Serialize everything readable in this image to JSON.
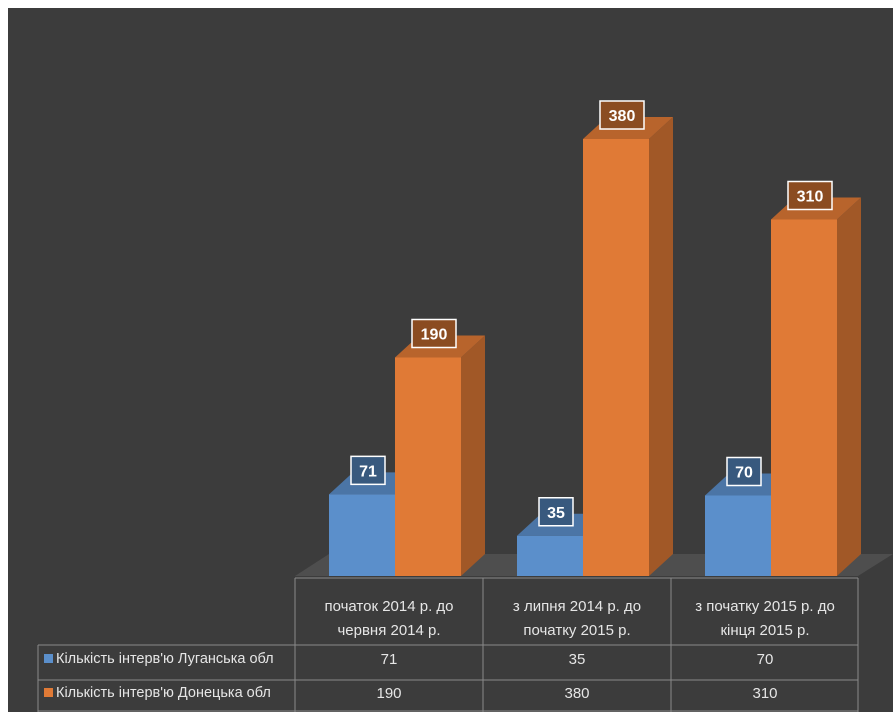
{
  "colors": {
    "background": "#3c3c3c",
    "series_1": "#5b8fcb",
    "series_2": "#e07a36",
    "table_lines": "#8a8a8a",
    "text": "#e6e6e6"
  },
  "chart_data": {
    "type": "bar",
    "title": "",
    "categories": [
      [
        "початок 2014 р. до",
        "червня 2014 р."
      ],
      [
        "з липня 2014 р. до",
        "початку 2015 р."
      ],
      [
        "з початку 2015 р. до",
        "кінця 2015 р."
      ]
    ],
    "series": [
      {
        "name": "Кількість інтерв'ю Луганська обл",
        "values": [
          71,
          35,
          70
        ]
      },
      {
        "name": "Кількість інтерв'ю Донецька обл",
        "values": [
          190,
          380,
          310
        ]
      }
    ],
    "ylim": [
      0,
      400
    ],
    "grid": false,
    "data_labels": true,
    "legend": "data-table"
  }
}
